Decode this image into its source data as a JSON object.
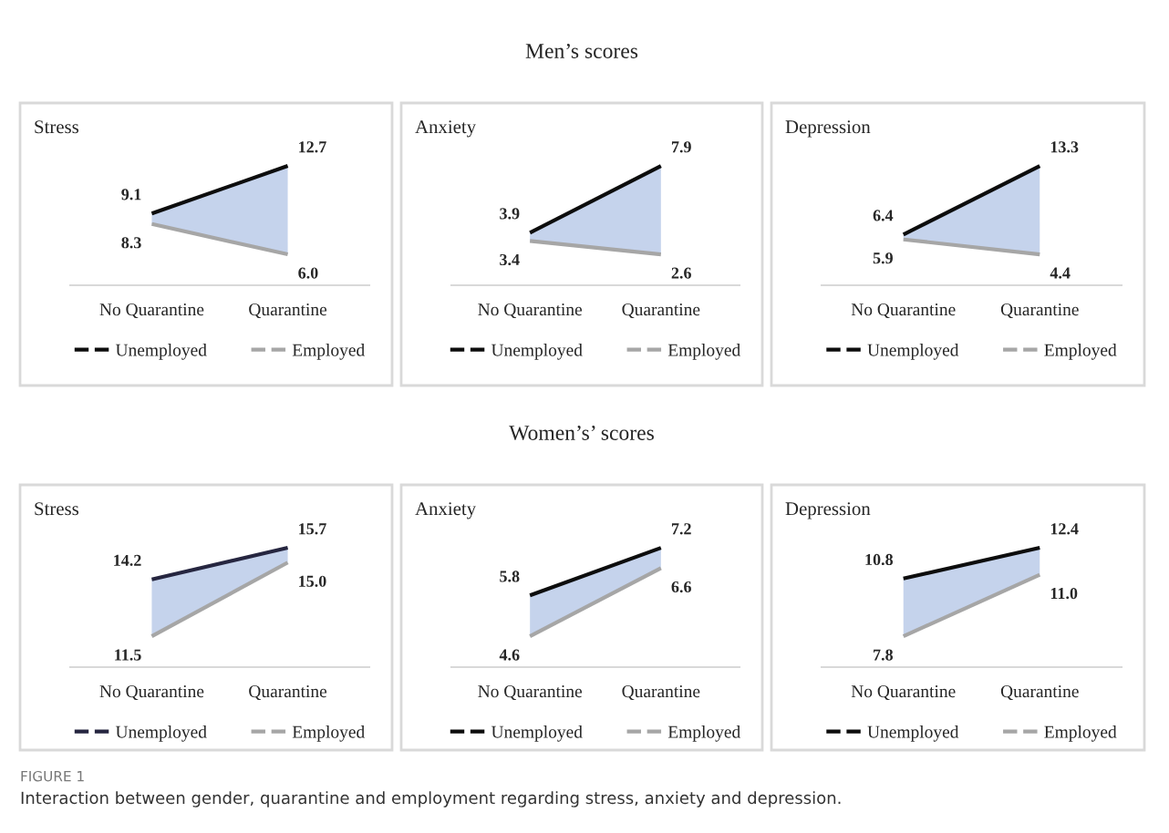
{
  "chart_data": [
    {
      "type": "line",
      "title": "Stress",
      "categories": [
        "No Quarantine",
        "Quarantine"
      ],
      "tick_labels": "x",
      "legend": "bottom",
      "grid": false,
      "marker": "none",
      "line_style": "solid",
      "series": [
        {
          "name": "Unemployed",
          "color": "#0d0d0d",
          "values": [
            9.1,
            12.7
          ],
          "value_labels": [
            "9.1",
            "12.7"
          ],
          "lower": [
            8.3,
            6.0
          ],
          "upper": [
            9.1,
            12.7
          ]
        },
        {
          "name": "Employed",
          "color": "#a6a6a6",
          "values": [
            8.3,
            6.0
          ],
          "value_labels": [
            "8.3",
            "6.0"
          ]
        }
      ]
    },
    {
      "type": "line",
      "title": "Anxiety",
      "subtitle": "Men’s scores",
      "categories": [
        "No Quarantine",
        "Quarantine"
      ],
      "tick_labels": "x",
      "legend": "bottom",
      "grid": false,
      "marker": "none",
      "line_style": "solid",
      "series": [
        {
          "name": "Unemployed",
          "color": "#0d0d0d",
          "values": [
            3.9,
            7.9
          ],
          "value_labels": [
            "3.9",
            "7.9"
          ],
          "lower": [
            3.4,
            2.6
          ],
          "upper": [
            3.9,
            7.9
          ]
        },
        {
          "name": "Employed",
          "color": "#a6a6a6",
          "values": [
            3.4,
            2.6
          ],
          "value_labels": [
            "3.4",
            "2.6"
          ]
        }
      ]
    },
    {
      "type": "line",
      "title": "Depression",
      "categories": [
        "No Quarantine",
        "Quarantine"
      ],
      "tick_labels": "x",
      "legend": "bottom",
      "grid": false,
      "marker": "none",
      "line_style": "solid",
      "series": [
        {
          "name": "Unemployed",
          "color": "#0d0d0d",
          "values": [
            6.4,
            13.3
          ],
          "value_labels": [
            "6.4",
            "13.3"
          ],
          "lower": [
            5.9,
            4.4
          ],
          "upper": [
            6.4,
            13.3
          ]
        },
        {
          "name": "Employed",
          "color": "#a6a6a6",
          "values": [
            5.9,
            4.4
          ],
          "value_labels": [
            "5.9",
            "4.4"
          ]
        }
      ]
    },
    {
      "type": "line",
      "title": "Stress",
      "categories": [
        "No Quarantine",
        "Quarantine"
      ],
      "tick_labels": "x",
      "legend": "bottom",
      "grid": false,
      "marker": "none",
      "line_style": "solid",
      "series": [
        {
          "name": "Unemployed",
          "color": "#262640",
          "values": [
            14.2,
            15.7
          ],
          "value_labels": [
            "14.2",
            "15.7"
          ],
          "lower": [
            11.5,
            15.0
          ],
          "upper": [
            14.2,
            15.7
          ]
        },
        {
          "name": "Employed",
          "color": "#a6a6a6",
          "values": [
            11.5,
            15.0
          ],
          "value_labels": [
            "11.5",
            "15.0"
          ]
        }
      ]
    },
    {
      "type": "line",
      "title": "Anxiety",
      "subtitle": "Women’s’ scores",
      "categories": [
        "No Quarantine",
        "Quarantine"
      ],
      "tick_labels": "x",
      "legend": "bottom",
      "grid": false,
      "marker": "none",
      "line_style": "solid",
      "series": [
        {
          "name": "Unemployed",
          "color": "#0d0d0d",
          "values": [
            5.8,
            7.2
          ],
          "value_labels": [
            "5.8",
            "7.2"
          ],
          "lower": [
            4.6,
            6.6
          ],
          "upper": [
            5.8,
            7.2
          ]
        },
        {
          "name": "Employed",
          "color": "#a6a6a6",
          "values": [
            4.6,
            6.6
          ],
          "value_labels": [
            "4.6",
            "6.6"
          ]
        }
      ]
    },
    {
      "type": "line",
      "title": "Depression",
      "categories": [
        "No Quarantine",
        "Quarantine"
      ],
      "tick_labels": "x",
      "legend": "bottom",
      "grid": false,
      "marker": "none",
      "line_style": "solid",
      "series": [
        {
          "name": "Unemployed",
          "color": "#0d0d0d",
          "values": [
            10.8,
            12.4
          ],
          "value_labels": [
            "10.8",
            "12.4"
          ],
          "lower": [
            7.8,
            11.0
          ],
          "upper": [
            10.8,
            12.4
          ]
        },
        {
          "name": "Employed",
          "color": "#a6a6a6",
          "values": [
            7.8,
            11.0
          ],
          "value_labels": [
            "7.8",
            "11.0"
          ]
        }
      ],
      "annotations": [
        "FIGURE 1",
        "Interaction between gender, quarantine and employment regarding stress, anxiety and depression."
      ]
    }
  ]
}
